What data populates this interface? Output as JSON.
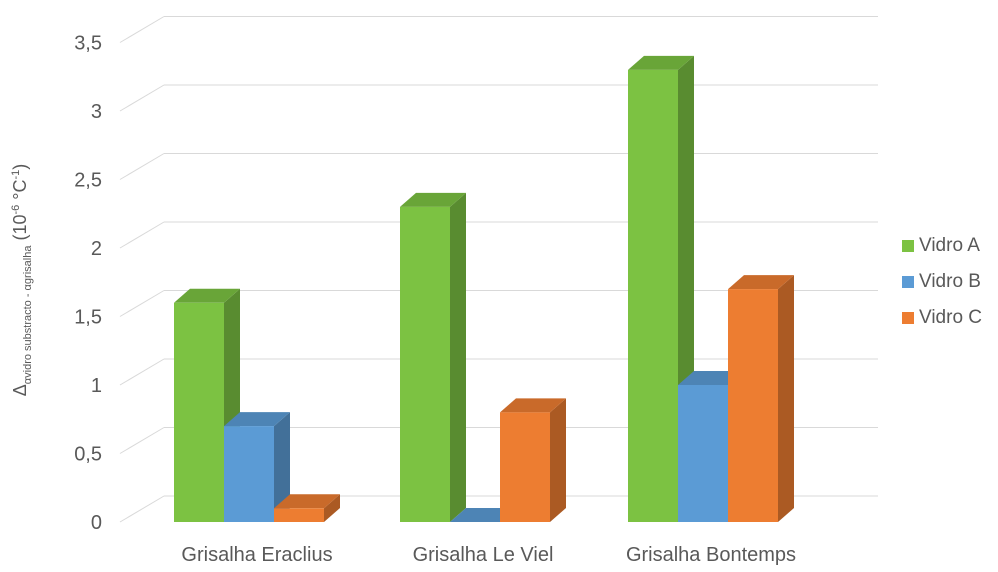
{
  "chart_data": {
    "type": "bar",
    "categories": [
      "Grisalha Eraclius",
      "Grisalha Le Viel",
      "Grisalha Bontemps"
    ],
    "series": [
      {
        "name": "Vidro A",
        "values": [
          1.6,
          2.3,
          3.3
        ],
        "color": "#7CC242"
      },
      {
        "name": "Vidro B",
        "values": [
          0.7,
          0.0,
          1.0
        ],
        "color": "#5B9BD5"
      },
      {
        "name": "Vidro C",
        "values": [
          0.1,
          0.8,
          1.7
        ],
        "color": "#ED7D31"
      }
    ],
    "ylim": [
      0,
      3.5
    ],
    "yticks": [
      "0",
      "0,5",
      "1",
      "1,5",
      "2",
      "2,5",
      "3",
      "3,5"
    ],
    "ylabel": {
      "delta": "Δ",
      "subscript": "αvidro substracto - αgrisalha",
      "units_pre": "(10",
      "units_exp1": "-6",
      "units_mid": " °C",
      "units_exp2": "-1",
      "units_post": ")"
    },
    "grid": true,
    "legend_position": "right",
    "style": "3d-clustered-column"
  }
}
